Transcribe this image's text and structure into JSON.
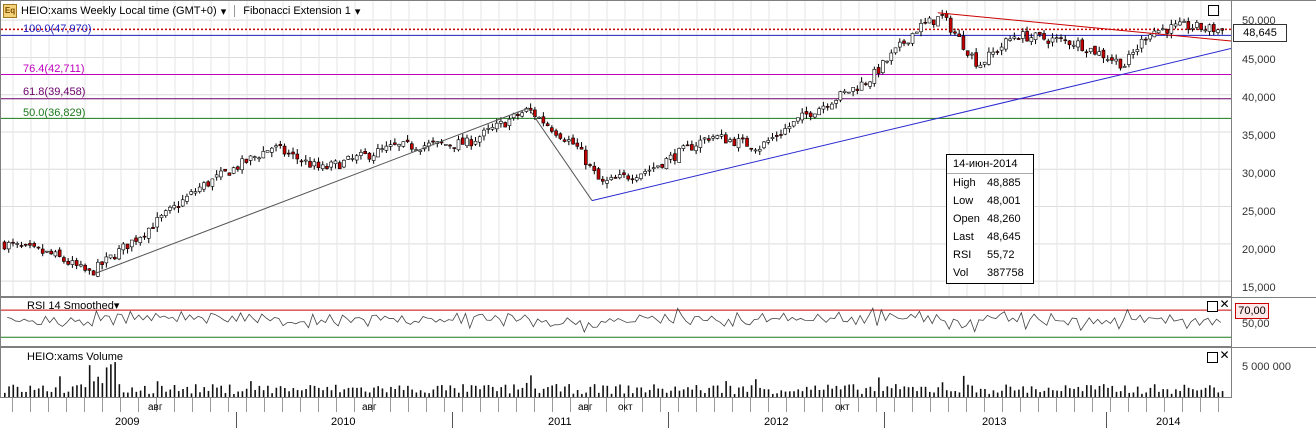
{
  "header": {
    "symbol_title": "HEIO:xams Weekly Local time (GMT+0)",
    "study_title": "Fibonacci Extension 1"
  },
  "fib_levels": [
    {
      "label": "100.0(47,970)",
      "value": 47970,
      "color": "#1f1fc0"
    },
    {
      "label": "76.4(42,711)",
      "value": 42711,
      "color": "#c000c0"
    },
    {
      "label": "61.8(39,458)",
      "value": 39458,
      "color": "#6a006a"
    },
    {
      "label": "50.0(36,829)",
      "value": 36829,
      "color": "#1a7a1a"
    }
  ],
  "price_axis": {
    "ticks": [
      "50,000",
      "45,000",
      "40,000",
      "35,000",
      "30,000",
      "25,000",
      "20,000",
      "15,000"
    ],
    "tick_values": [
      50000,
      45000,
      40000,
      35000,
      30000,
      25000,
      20000,
      15000
    ],
    "last_price_tag": "48,645"
  },
  "info_box": {
    "date": "14-июн-2014",
    "rows": [
      {
        "key": "High",
        "val": "48,885"
      },
      {
        "key": "Low",
        "val": "48,001"
      },
      {
        "key": "Open",
        "val": "48,260"
      },
      {
        "key": "Last",
        "val": "48,645"
      },
      {
        "key": "RSI",
        "val": "55,72"
      },
      {
        "key": "Vol",
        "val": "387758"
      }
    ]
  },
  "rsi_pane": {
    "title": "RSI 14 Smoothed",
    "level_tag": "70,00",
    "mid_label": "50,00"
  },
  "volume_pane": {
    "title": "HEIO:xams Volume",
    "axis_label": "5 000 000"
  },
  "time_axis": {
    "years": [
      "2009",
      "2010",
      "2011",
      "2012",
      "2013",
      "2014"
    ],
    "months": [
      "авг",
      "авг",
      "авг",
      "окт",
      "окт"
    ]
  },
  "colors": {
    "fib100_dotted": "#cc0000",
    "trendline": "#2a2ad0",
    "rsi_70": "#cc0000",
    "rsi_30": "#1a7a1a",
    "candle_up": "#ffffff",
    "candle_down": "#c00000"
  },
  "chart_data": {
    "type": "candlestick",
    "symbol": "HEIO:xams",
    "period": "Weekly",
    "ylim": [
      13000,
      51500
    ],
    "anchor_points": [
      {
        "t": 0,
        "p": 20000
      },
      {
        "t": 0.04,
        "p": 18500
      },
      {
        "t": 0.07,
        "p": 16000
      },
      {
        "t": 0.11,
        "p": 21000
      },
      {
        "t": 0.16,
        "p": 27500
      },
      {
        "t": 0.22,
        "p": 33000
      },
      {
        "t": 0.26,
        "p": 30000
      },
      {
        "t": 0.32,
        "p": 33000
      },
      {
        "t": 0.38,
        "p": 33500
      },
      {
        "t": 0.43,
        "p": 38000
      },
      {
        "t": 0.47,
        "p": 33000
      },
      {
        "t": 0.49,
        "p": 28000
      },
      {
        "t": 0.53,
        "p": 30000
      },
      {
        "t": 0.58,
        "p": 34500
      },
      {
        "t": 0.62,
        "p": 33000
      },
      {
        "t": 0.66,
        "p": 37500
      },
      {
        "t": 0.71,
        "p": 42000
      },
      {
        "t": 0.75,
        "p": 49000
      },
      {
        "t": 0.77,
        "p": 50500
      },
      {
        "t": 0.8,
        "p": 44000
      },
      {
        "t": 0.83,
        "p": 48000
      },
      {
        "t": 0.88,
        "p": 47000
      },
      {
        "t": 0.92,
        "p": 44000
      },
      {
        "t": 0.94,
        "p": 48500
      },
      {
        "t": 0.97,
        "p": 49200
      },
      {
        "t": 1.0,
        "p": 48645
      }
    ]
  }
}
